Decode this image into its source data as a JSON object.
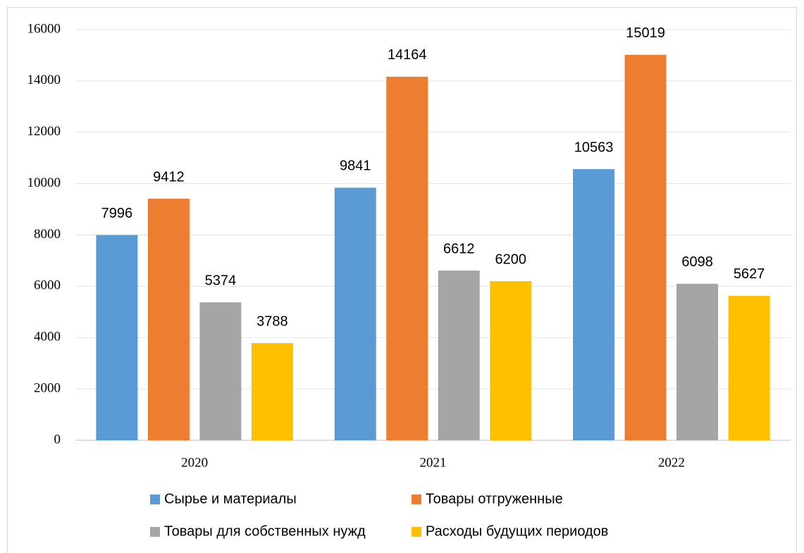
{
  "chart_data": {
    "type": "bar",
    "categories": [
      "2020",
      "2021",
      "2022"
    ],
    "series": [
      {
        "name": "Сырье и материалы",
        "color": "#5b9bd5",
        "values": [
          7996,
          9841,
          10563
        ]
      },
      {
        "name": "Товары отгруженные",
        "color": "#ed7d31",
        "values": [
          9412,
          14164,
          15019
        ]
      },
      {
        "name": "Товары для собственных нужд",
        "color": "#a5a5a5",
        "values": [
          5374,
          6612,
          6098
        ]
      },
      {
        "name": "Расходы будущих периодов",
        "color": "#ffc000",
        "values": [
          3788,
          6200,
          5627
        ]
      }
    ],
    "ylim": [
      0,
      16000
    ],
    "yticks": [
      0,
      2000,
      4000,
      6000,
      8000,
      10000,
      12000,
      14000,
      16000
    ],
    "grid": true
  }
}
